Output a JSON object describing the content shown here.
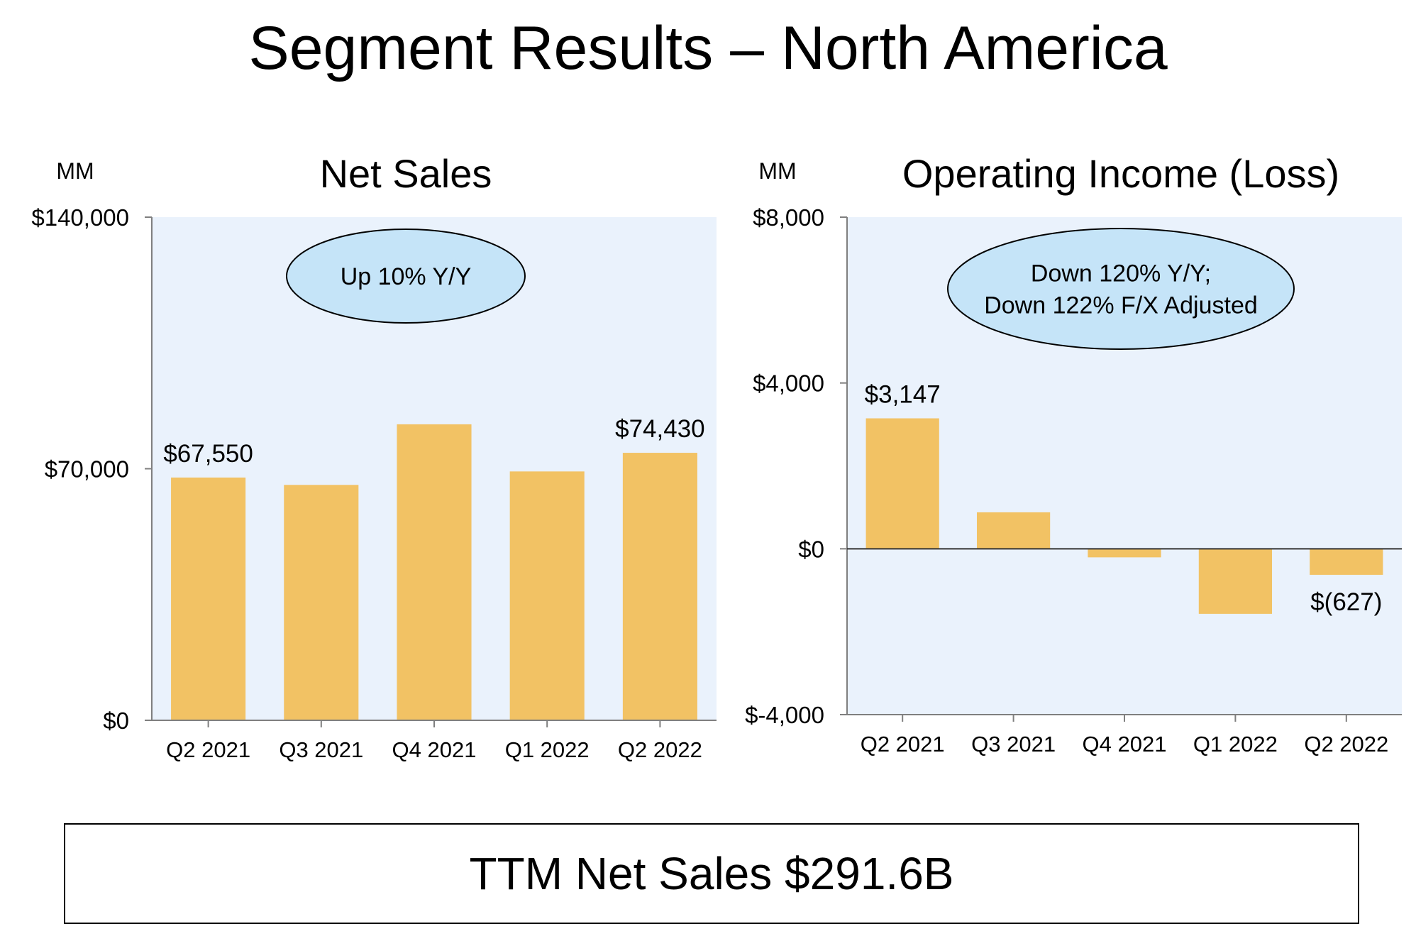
{
  "page": {
    "title": "Segment Results – North America"
  },
  "colors": {
    "plot_background": "#EAF2FC",
    "bar": "#F2C264",
    "callout_fill": "#C5E4F8",
    "axis": "#7F7F7F"
  },
  "chart_data": [
    {
      "type": "bar",
      "title": "Net Sales",
      "unit_label": "MM",
      "categories": [
        "Q2 2021",
        "Q3 2021",
        "Q4 2021",
        "Q1 2022",
        "Q2 2022"
      ],
      "values": [
        67550,
        65500,
        82360,
        69244,
        74430
      ],
      "data_labels": [
        "$67,550",
        "",
        "",
        "",
        "$74,430"
      ],
      "ylim": [
        0,
        140000
      ],
      "yticks": [
        {
          "value": 0,
          "label": "$0"
        },
        {
          "value": 70000,
          "label": "$70,000"
        },
        {
          "value": 140000,
          "label": "$140,000"
        }
      ],
      "callout": [
        "Up 10% Y/Y"
      ],
      "grid": false
    },
    {
      "type": "bar",
      "title": "Operating Income (Loss)",
      "unit_label": "MM",
      "categories": [
        "Q2 2021",
        "Q3 2021",
        "Q4 2021",
        "Q1 2022",
        "Q2 2022"
      ],
      "values": [
        3147,
        880,
        -206,
        -1568,
        -627
      ],
      "data_labels": [
        "$3,147",
        "",
        "",
        "",
        "$(627)"
      ],
      "ylim": [
        -4000,
        8000
      ],
      "yticks": [
        {
          "value": -4000,
          "label": "$-4,000"
        },
        {
          "value": 0,
          "label": "$0"
        },
        {
          "value": 4000,
          "label": "$4,000"
        },
        {
          "value": 8000,
          "label": "$8,000"
        }
      ],
      "callout": [
        "Down 120% Y/Y;",
        "Down 122% F/X Adjusted"
      ],
      "grid": false
    }
  ],
  "footer": {
    "ttm_text": "TTM Net Sales $291.6B"
  }
}
